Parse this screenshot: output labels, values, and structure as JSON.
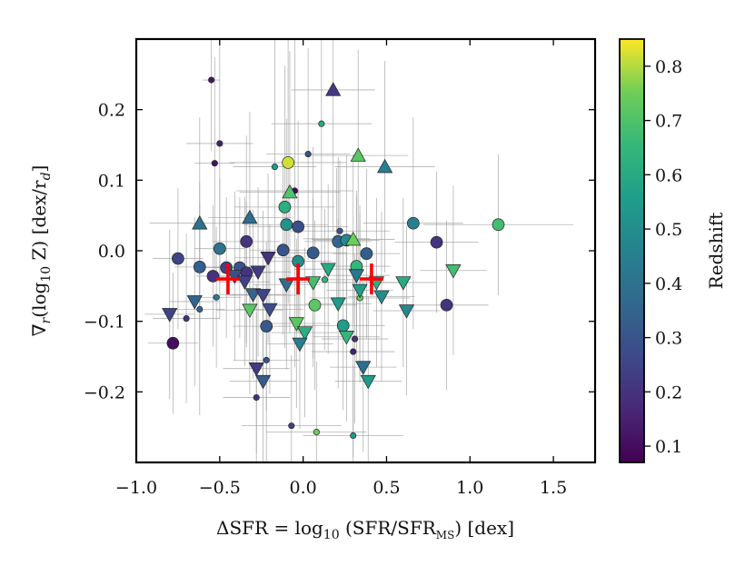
{
  "chart_data": {
    "type": "scatter",
    "title": "",
    "xlabel": "ΔSFR = log10 (SFR/SFR_MS) [dex]",
    "xlabel_parts": {
      "pre": "ΔSFR = log",
      "sub1": "10",
      "mid": " (SFR/SFR",
      "sub2": "MS",
      "post": ") [dex]"
    },
    "ylabel": "∇r(log10 Z) [dex/rd]",
    "ylabel_parts": {
      "p1": "∇",
      "s1": "r",
      "p2": "(log",
      "s2": "10",
      "p3": " Z)  [dex/r",
      "s3": "d",
      "p4": "]"
    },
    "xlim": [
      -1.0,
      1.75
    ],
    "ylim": [
      -0.3,
      0.3
    ],
    "xticks": [
      -1.0,
      -0.5,
      0.0,
      0.5,
      1.0,
      1.5
    ],
    "xtick_labels": [
      "−1.0",
      "−0.5",
      "0.0",
      "0.5",
      "1.0",
      "1.5"
    ],
    "yticks": [
      -0.2,
      -0.1,
      0.0,
      0.1,
      0.2
    ],
    "ytick_labels": [
      "−0.2",
      "−0.1",
      "0.0",
      "0.1",
      "0.2"
    ],
    "colorbar": {
      "label": "Redshift",
      "range": [
        0.07,
        0.85
      ],
      "ticks": [
        0.1,
        0.2,
        0.3,
        0.4,
        0.5,
        0.6,
        0.7,
        0.8
      ],
      "tick_labels": [
        "0.1",
        "0.2",
        "0.3",
        "0.4",
        "0.5",
        "0.6",
        "0.7",
        "0.8"
      ]
    },
    "binned_medians": [
      {
        "x": -0.45,
        "y": -0.04,
        "xerr": 0.07,
        "yerr": 0.022
      },
      {
        "x": -0.03,
        "y": -0.04,
        "xerr": 0.07,
        "yerr": 0.022
      },
      {
        "x": 0.41,
        "y": -0.04,
        "xerr": 0.07,
        "yerr": 0.022
      }
    ],
    "points": [
      {
        "x": -0.55,
        "y": 0.242,
        "z": 0.12,
        "m": "s",
        "xe": 0.05,
        "ye": 0.1
      },
      {
        "x": -0.53,
        "y": 0.124,
        "z": 0.12,
        "m": "s",
        "xe": 0.12,
        "ye": 0.15
      },
      {
        "x": -0.5,
        "y": 0.152,
        "z": 0.15,
        "m": "s",
        "xe": 0.2,
        "ye": 0.2
      },
      {
        "x": -0.05,
        "y": 0.085,
        "z": 0.1,
        "m": "s",
        "xe": 0.35,
        "ye": 0.25
      },
      {
        "x": 0.03,
        "y": 0.137,
        "z": 0.3,
        "m": "s",
        "xe": 0.25,
        "ye": 0.15
      },
      {
        "x": 0.11,
        "y": 0.18,
        "z": 0.6,
        "m": "s",
        "xe": 0.3,
        "ye": 0.2
      },
      {
        "x": -0.17,
        "y": 0.119,
        "z": 0.55,
        "m": "s",
        "xe": 0.25,
        "ye": 0.2
      },
      {
        "x": 0.22,
        "y": 0.028,
        "z": 0.3,
        "m": "s",
        "xe": 0.3,
        "ye": 0.1
      },
      {
        "x": 0.2,
        "y": 0.017,
        "z": 0.4,
        "m": "s",
        "xe": 0.2,
        "ye": 0.1
      },
      {
        "x": -0.62,
        "y": -0.083,
        "z": 0.35,
        "m": "s",
        "xe": 0.15,
        "ye": 0.15
      },
      {
        "x": -0.7,
        "y": -0.096,
        "z": 0.2,
        "m": "s",
        "xe": 0.2,
        "ye": 0.12
      },
      {
        "x": -0.52,
        "y": -0.066,
        "z": 0.45,
        "m": "s",
        "xe": 0.15,
        "ye": 0.1
      },
      {
        "x": -0.22,
        "y": -0.155,
        "z": 0.3,
        "m": "s",
        "xe": 0.2,
        "ye": 0.15
      },
      {
        "x": -0.28,
        "y": -0.208,
        "z": 0.2,
        "m": "s",
        "xe": 0.2,
        "ye": 0.12
      },
      {
        "x": -0.07,
        "y": -0.248,
        "z": 0.25,
        "m": "s",
        "xe": 0.3,
        "ye": 0.1
      },
      {
        "x": 0.08,
        "y": -0.257,
        "z": 0.75,
        "m": "s",
        "xe": 0.3,
        "ye": 0.1
      },
      {
        "x": 0.3,
        "y": -0.262,
        "z": 0.55,
        "m": "s",
        "xe": 0.3,
        "ye": 0.1
      },
      {
        "x": 0.3,
        "y": -0.143,
        "z": 0.15,
        "m": "s",
        "xe": 0.25,
        "ye": 0.15
      },
      {
        "x": 0.31,
        "y": -0.125,
        "z": 0.2,
        "m": "s",
        "xe": 0.2,
        "ye": 0.12
      },
      {
        "x": 0.34,
        "y": -0.067,
        "z": 0.75,
        "m": "s",
        "xe": 0.3,
        "ye": 0.12
      },
      {
        "x": 0.13,
        "y": -0.041,
        "z": 0.65,
        "m": "s",
        "xe": 0.25,
        "ye": 0.1
      },
      {
        "x": -0.09,
        "y": 0.125,
        "z": 0.82,
        "m": "o",
        "xe": 0.35,
        "ye": 0.2
      },
      {
        "x": -0.11,
        "y": 0.062,
        "z": 0.62,
        "m": "o",
        "xe": 0.3,
        "ye": 0.2
      },
      {
        "x": -0.1,
        "y": 0.037,
        "z": 0.52,
        "m": "o",
        "xe": 0.25,
        "ye": 0.15
      },
      {
        "x": -0.03,
        "y": 0.034,
        "z": 0.28,
        "m": "o",
        "xe": 0.3,
        "ye": 0.15
      },
      {
        "x": 0.66,
        "y": 0.039,
        "z": 0.45,
        "m": "o",
        "xe": 0.3,
        "ye": 0.15
      },
      {
        "x": 1.17,
        "y": 0.037,
        "z": 0.68,
        "m": "o",
        "xe": 0.45,
        "ye": 0.1
      },
      {
        "x": -0.75,
        "y": -0.011,
        "z": 0.25,
        "m": "o",
        "xe": 0.15,
        "ye": 0.1
      },
      {
        "x": -0.62,
        "y": -0.023,
        "z": 0.33,
        "m": "o",
        "xe": 0.15,
        "ye": 0.12
      },
      {
        "x": -0.5,
        "y": 0.003,
        "z": 0.4,
        "m": "o",
        "xe": 0.15,
        "ye": 0.1
      },
      {
        "x": -0.34,
        "y": 0.013,
        "z": 0.2,
        "m": "o",
        "xe": 0.2,
        "ye": 0.15
      },
      {
        "x": -0.12,
        "y": 0.001,
        "z": 0.3,
        "m": "o",
        "xe": 0.2,
        "ye": 0.12
      },
      {
        "x": 0.06,
        "y": -0.003,
        "z": 0.32,
        "m": "o",
        "xe": 0.2,
        "ye": 0.15
      },
      {
        "x": 0.21,
        "y": 0.013,
        "z": 0.35,
        "m": "o",
        "xe": 0.2,
        "ye": 0.12
      },
      {
        "x": 0.26,
        "y": 0.015,
        "z": 0.48,
        "m": "o",
        "xe": 0.2,
        "ye": 0.12
      },
      {
        "x": 0.38,
        "y": -0.004,
        "z": 0.33,
        "m": "o",
        "xe": 0.2,
        "ye": 0.12
      },
      {
        "x": 0.8,
        "y": 0.012,
        "z": 0.2,
        "m": "o",
        "xe": 0.25,
        "ye": 0.1
      },
      {
        "x": -0.54,
        "y": -0.036,
        "z": 0.2,
        "m": "o",
        "xe": 0.1,
        "ye": 0.1
      },
      {
        "x": -0.46,
        "y": -0.024,
        "z": 0.25,
        "m": "o",
        "xe": 0.15,
        "ye": 0.1
      },
      {
        "x": -0.38,
        "y": -0.024,
        "z": 0.3,
        "m": "o",
        "xe": 0.15,
        "ye": 0.1
      },
      {
        "x": -0.34,
        "y": -0.031,
        "z": 0.2,
        "m": "o",
        "xe": 0.15,
        "ye": 0.1
      },
      {
        "x": -0.03,
        "y": -0.015,
        "z": 0.5,
        "m": "o",
        "xe": 0.2,
        "ye": 0.1
      },
      {
        "x": 0.32,
        "y": -0.022,
        "z": 0.65,
        "m": "o",
        "xe": 0.2,
        "ye": 0.1
      },
      {
        "x": 0.07,
        "y": -0.077,
        "z": 0.72,
        "m": "o",
        "xe": 0.25,
        "ye": 0.12
      },
      {
        "x": 0.24,
        "y": -0.106,
        "z": 0.55,
        "m": "o",
        "xe": 0.25,
        "ye": 0.12
      },
      {
        "x": -0.22,
        "y": -0.107,
        "z": 0.32,
        "m": "o",
        "xe": 0.2,
        "ye": 0.12
      },
      {
        "x": 0.86,
        "y": -0.077,
        "z": 0.2,
        "m": "o",
        "xe": 0.25,
        "ye": 0.12
      },
      {
        "x": -0.78,
        "y": -0.131,
        "z": 0.1,
        "m": "o",
        "xe": 0.15,
        "ye": 0.1
      },
      {
        "x": 0.18,
        "y": 0.228,
        "z": 0.22,
        "m": "^",
        "xe": 0.25,
        "ye": 0.2
      },
      {
        "x": 0.33,
        "y": 0.135,
        "z": 0.72,
        "m": "^",
        "xe": 0.3,
        "ye": 0.15
      },
      {
        "x": 0.49,
        "y": 0.119,
        "z": 0.45,
        "m": "^",
        "xe": 0.3,
        "ye": 0.15
      },
      {
        "x": -0.08,
        "y": 0.083,
        "z": 0.7,
        "m": "^",
        "xe": 0.3,
        "ye": 0.2
      },
      {
        "x": -0.62,
        "y": 0.039,
        "z": 0.4,
        "m": "^",
        "xe": 0.3,
        "ye": 0.15
      },
      {
        "x": -0.32,
        "y": 0.047,
        "z": 0.38,
        "m": "^",
        "xe": 0.25,
        "ye": 0.15
      },
      {
        "x": 0.3,
        "y": 0.016,
        "z": 0.75,
        "m": "^",
        "xe": 0.25,
        "ye": 0.12
      },
      {
        "x": -0.65,
        "y": -0.072,
        "z": 0.35,
        "m": "v",
        "xe": 0.15,
        "ye": 0.12
      },
      {
        "x": -0.8,
        "y": -0.09,
        "z": 0.25,
        "m": "v",
        "xe": 0.15,
        "ye": 0.12
      },
      {
        "x": -0.41,
        "y": -0.036,
        "z": 0.28,
        "m": "v",
        "xe": 0.15,
        "ye": 0.12
      },
      {
        "x": -0.35,
        "y": -0.044,
        "z": 0.24,
        "m": "v",
        "xe": 0.15,
        "ye": 0.12
      },
      {
        "x": -0.27,
        "y": -0.03,
        "z": 0.22,
        "m": "v",
        "xe": 0.2,
        "ye": 0.12
      },
      {
        "x": -0.21,
        "y": -0.01,
        "z": 0.2,
        "m": "v",
        "xe": 0.2,
        "ye": 0.12
      },
      {
        "x": -0.3,
        "y": -0.062,
        "z": 0.35,
        "m": "v",
        "xe": 0.2,
        "ye": 0.12
      },
      {
        "x": -0.24,
        "y": -0.063,
        "z": 0.25,
        "m": "v",
        "xe": 0.2,
        "ye": 0.12
      },
      {
        "x": -0.32,
        "y": -0.084,
        "z": 0.72,
        "m": "v",
        "xe": 0.2,
        "ye": 0.12
      },
      {
        "x": -0.2,
        "y": -0.083,
        "z": 0.28,
        "m": "v",
        "xe": 0.2,
        "ye": 0.12
      },
      {
        "x": -0.1,
        "y": -0.048,
        "z": 0.38,
        "m": "v",
        "xe": 0.2,
        "ye": 0.12
      },
      {
        "x": -0.28,
        "y": -0.167,
        "z": 0.22,
        "m": "v",
        "xe": 0.2,
        "ye": 0.12
      },
      {
        "x": -0.24,
        "y": -0.185,
        "z": 0.32,
        "m": "v",
        "xe": 0.2,
        "ye": 0.12
      },
      {
        "x": 0.06,
        "y": -0.045,
        "z": 0.68,
        "m": "v",
        "xe": 0.2,
        "ye": 0.12
      },
      {
        "x": 0.15,
        "y": -0.026,
        "z": 0.6,
        "m": "v",
        "xe": 0.2,
        "ye": 0.12
      },
      {
        "x": 0.32,
        "y": -0.035,
        "z": 0.42,
        "m": "v",
        "xe": 0.2,
        "ye": 0.12
      },
      {
        "x": 0.44,
        "y": -0.045,
        "z": 0.62,
        "m": "v",
        "xe": 0.2,
        "ye": 0.12
      },
      {
        "x": 0.34,
        "y": -0.056,
        "z": 0.55,
        "m": "v",
        "xe": 0.2,
        "ye": 0.12
      },
      {
        "x": 0.47,
        "y": -0.065,
        "z": 0.5,
        "m": "v",
        "xe": 0.2,
        "ye": 0.12
      },
      {
        "x": 0.21,
        "y": -0.075,
        "z": 0.55,
        "m": "v",
        "xe": 0.2,
        "ye": 0.12
      },
      {
        "x": 0.62,
        "y": -0.085,
        "z": 0.48,
        "m": "v",
        "xe": 0.2,
        "ye": 0.12
      },
      {
        "x": -0.04,
        "y": -0.103,
        "z": 0.72,
        "m": "v",
        "xe": 0.2,
        "ye": 0.12
      },
      {
        "x": 0.01,
        "y": -0.116,
        "z": 0.62,
        "m": "v",
        "xe": 0.2,
        "ye": 0.12
      },
      {
        "x": -0.02,
        "y": -0.132,
        "z": 0.45,
        "m": "v",
        "xe": 0.2,
        "ye": 0.12
      },
      {
        "x": 0.26,
        "y": -0.122,
        "z": 0.65,
        "m": "v",
        "xe": 0.2,
        "ye": 0.12
      },
      {
        "x": 0.36,
        "y": -0.165,
        "z": 0.38,
        "m": "v",
        "xe": 0.2,
        "ye": 0.12
      },
      {
        "x": 0.39,
        "y": -0.185,
        "z": 0.55,
        "m": "v",
        "xe": 0.2,
        "ye": 0.12
      },
      {
        "x": 0.9,
        "y": -0.028,
        "z": 0.68,
        "m": "v",
        "xe": 0.2,
        "ye": 0.12
      },
      {
        "x": 0.6,
        "y": -0.045,
        "z": 0.6,
        "m": "v",
        "xe": 0.2,
        "ye": 0.12
      }
    ]
  }
}
